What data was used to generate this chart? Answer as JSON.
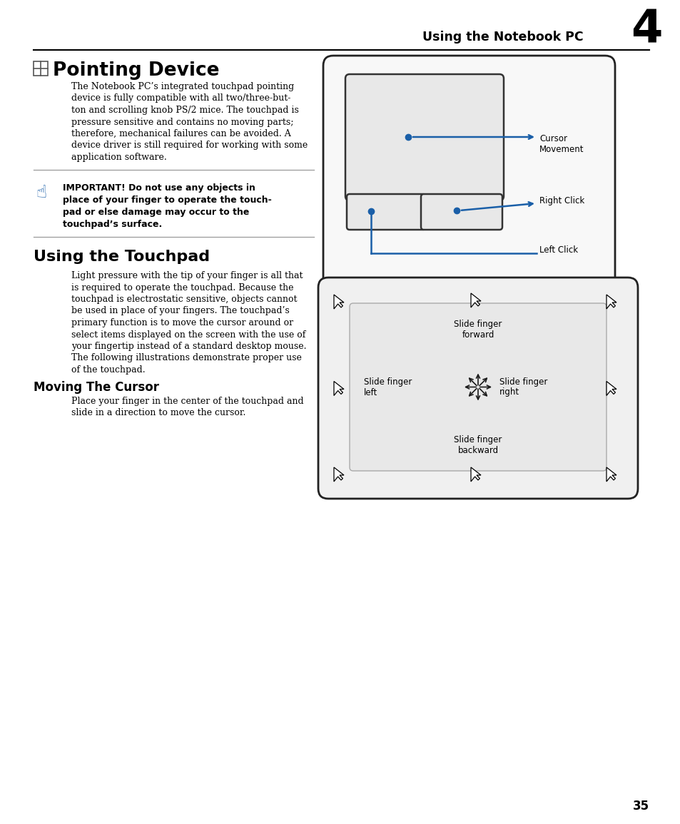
{
  "page_title": "Using the Notebook PC",
  "chapter_num": "4",
  "section1_title": "Pointing Device",
  "section1_body": [
    "The Notebook PC’s integrated touchpad pointing",
    "device is fully compatible with all two/three-but-",
    "ton and scrolling knob PS/2 mice. The touchpad is",
    "pressure sensitive and contains no moving parts;",
    "therefore, mechanical failures can be avoided. A",
    "device driver is still required for working with some",
    "application software."
  ],
  "important_line1": "IMPORTANT! Do not use any objects in",
  "important_line2": "place of your finger to operate the touch-",
  "important_line3": "pad or else damage may occur to the",
  "important_line4": "touchpad’s surface.",
  "section2_title": "Using the Touchpad",
  "section2_body": [
    "Light pressure with the tip of your finger is all that",
    "is required to operate the touchpad. Because the",
    "touchpad is electrostatic sensitive, objects cannot",
    "be used in place of your fingers. The touchpad’s",
    "primary function is to move the cursor around or",
    "select items displayed on the screen with the use of",
    "your fingertip instead of a standard desktop mouse.",
    "The following illustrations demonstrate proper use",
    "of the touchpad."
  ],
  "section3_title": "Moving The Cursor",
  "section3_body": [
    "Place your finger in the center of the touchpad and",
    "slide in a direction to move the cursor."
  ],
  "page_num": "35",
  "bg_color": "#ffffff",
  "text_color": "#000000",
  "blue_color": "#1a5fa8",
  "gray_dark": "#222222",
  "gray_light": "#f0f0f0"
}
